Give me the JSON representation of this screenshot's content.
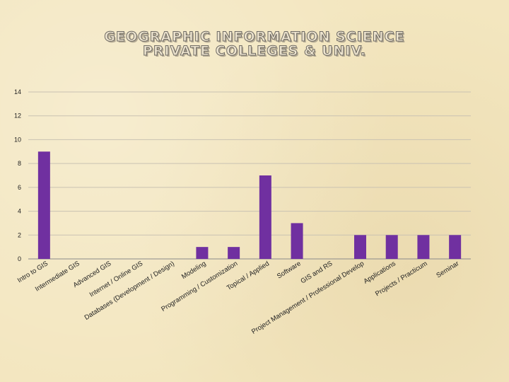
{
  "title": [
    "GEOGRAPHIC INFORMATION SCIENCE",
    "PRIVATE COLLEGES & UNIV."
  ],
  "chart_data": {
    "type": "bar",
    "title": "GEOGRAPHIC INFORMATION SCIENCE PRIVATE COLLEGES & UNIV.",
    "xlabel": "",
    "ylabel": "",
    "ylim": [
      0,
      14
    ],
    "yticks": [
      0,
      2,
      4,
      6,
      8,
      10,
      12,
      14
    ],
    "grid": true,
    "legend": "none",
    "bar_color": "#7030a0",
    "categories": [
      "Intro to GIS",
      "Intermediate GIS",
      "Advanced GIS",
      "Internet / Online GIS",
      "Databases (Development / Design)",
      "Modeling",
      "Programming / Customization",
      "Topical / Applied",
      "Software",
      "GIS and RS",
      "Project Management / Professional Develop",
      "Applications",
      "Projects / Practicum",
      "Seminar"
    ],
    "values": [
      9,
      0,
      0,
      0,
      0,
      1,
      1,
      7,
      3,
      0,
      2,
      2,
      2,
      2
    ]
  }
}
